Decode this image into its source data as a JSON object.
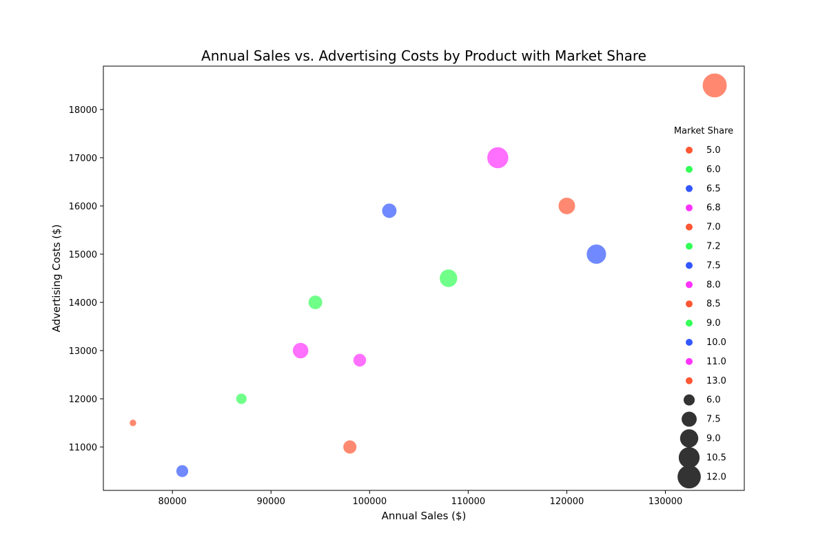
{
  "chart_data": {
    "type": "scatter",
    "title": "Annual Sales vs. Advertising Costs by Product with Market Share",
    "xlabel": "Annual Sales ($)",
    "ylabel": "Advertising Costs ($)",
    "xlim": [
      73000,
      138000
    ],
    "ylim": [
      10100,
      18900
    ],
    "xticks": [
      80000,
      90000,
      100000,
      110000,
      120000,
      130000
    ],
    "yticks": [
      11000,
      12000,
      13000,
      14000,
      15000,
      16000,
      17000,
      18000
    ],
    "grid": false,
    "legend": {
      "title": "Market Share",
      "placement": "right",
      "hue_entries": [
        {
          "label": "5.0",
          "color": "#ff5733"
        },
        {
          "label": "6.0",
          "color": "#33ff57"
        },
        {
          "label": "6.5",
          "color": "#3357ff"
        },
        {
          "label": "6.8",
          "color": "#ff33ff"
        },
        {
          "label": "7.0",
          "color": "#ff5733"
        },
        {
          "label": "7.2",
          "color": "#33ff57"
        },
        {
          "label": "7.5",
          "color": "#3357ff"
        },
        {
          "label": "8.0",
          "color": "#ff33ff"
        },
        {
          "label": "8.5",
          "color": "#ff5733"
        },
        {
          "label": "9.0",
          "color": "#33ff57"
        },
        {
          "label": "10.0",
          "color": "#3357ff"
        },
        {
          "label": "11.0",
          "color": "#ff33ff"
        },
        {
          "label": "13.0",
          "color": "#ff5733"
        }
      ],
      "size_entries": [
        {
          "label": "6.0",
          "value": 6.0
        },
        {
          "label": "7.5",
          "value": 7.5
        },
        {
          "label": "9.0",
          "value": 9.0
        },
        {
          "label": "10.5",
          "value": 10.5
        },
        {
          "label": "12.0",
          "value": 12.0
        }
      ]
    },
    "points": [
      {
        "x": 76000,
        "y": 11500,
        "share": 5.0,
        "color": "#ff5733"
      },
      {
        "x": 81000,
        "y": 10500,
        "share": 6.5,
        "color": "#3357ff"
      },
      {
        "x": 87000,
        "y": 12000,
        "share": 6.0,
        "color": "#33ff57"
      },
      {
        "x": 93000,
        "y": 13000,
        "share": 8.0,
        "color": "#ff33ff"
      },
      {
        "x": 94500,
        "y": 14000,
        "share": 7.2,
        "color": "#33ff57"
      },
      {
        "x": 98000,
        "y": 11000,
        "share": 7.0,
        "color": "#ff5733"
      },
      {
        "x": 99000,
        "y": 12800,
        "share": 6.8,
        "color": "#ff33ff"
      },
      {
        "x": 102000,
        "y": 15900,
        "share": 7.5,
        "color": "#3357ff"
      },
      {
        "x": 108000,
        "y": 14500,
        "share": 9.0,
        "color": "#33ff57"
      },
      {
        "x": 113000,
        "y": 17000,
        "share": 11.0,
        "color": "#ff33ff"
      },
      {
        "x": 120000,
        "y": 16000,
        "share": 8.5,
        "color": "#ff5733"
      },
      {
        "x": 123000,
        "y": 15000,
        "share": 10.0,
        "color": "#3357ff"
      },
      {
        "x": 135000,
        "y": 18500,
        "share": 13.0,
        "color": "#ff5733"
      }
    ]
  }
}
